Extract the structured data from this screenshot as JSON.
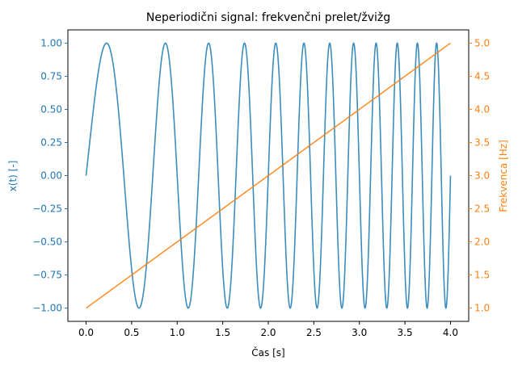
{
  "chart_data": {
    "type": "line",
    "title": "Neperiodični signal: frekvenčni prelet/žvižg",
    "xlabel": "Čas [s]",
    "ylabel_left": "x(t) [-]",
    "ylabel_right": "Frekvenca [Hz]",
    "xlim": [
      -0.2,
      4.2
    ],
    "ylim_left": [
      -1.1,
      1.1
    ],
    "ylim_right": [
      0.8,
      5.2
    ],
    "x_ticks": [
      "0.0",
      "0.5",
      "1.0",
      "1.5",
      "2.0",
      "2.5",
      "3.0",
      "3.5",
      "4.0"
    ],
    "y_ticks_left": [
      "−1.00",
      "−0.75",
      "−0.50",
      "−0.25",
      "0.00",
      "0.25",
      "0.50",
      "0.75",
      "1.00"
    ],
    "y_ticks_right": [
      "1.0",
      "1.5",
      "2.0",
      "2.5",
      "3.0",
      "3.5",
      "4.0",
      "4.5",
      "5.0"
    ],
    "colors": {
      "signal": "#3b8dbd",
      "frequency": "#ff7f0e",
      "left_axis": "#1f77b4",
      "right_axis": "#ff7f0e"
    },
    "series": [
      {
        "axis": "left",
        "function": "x(t) = sin(2π(f0·t + (f1 − f0)·t²/(2T))), 0 ≤ t ≤ T",
        "params": {
          "f0": 1.0,
          "f1": 5.0,
          "T": 4.0
        }
      },
      {
        "axis": "right",
        "x": [
          0.0,
          4.0
        ],
        "values": [
          1.0,
          5.0
        ]
      }
    ]
  }
}
